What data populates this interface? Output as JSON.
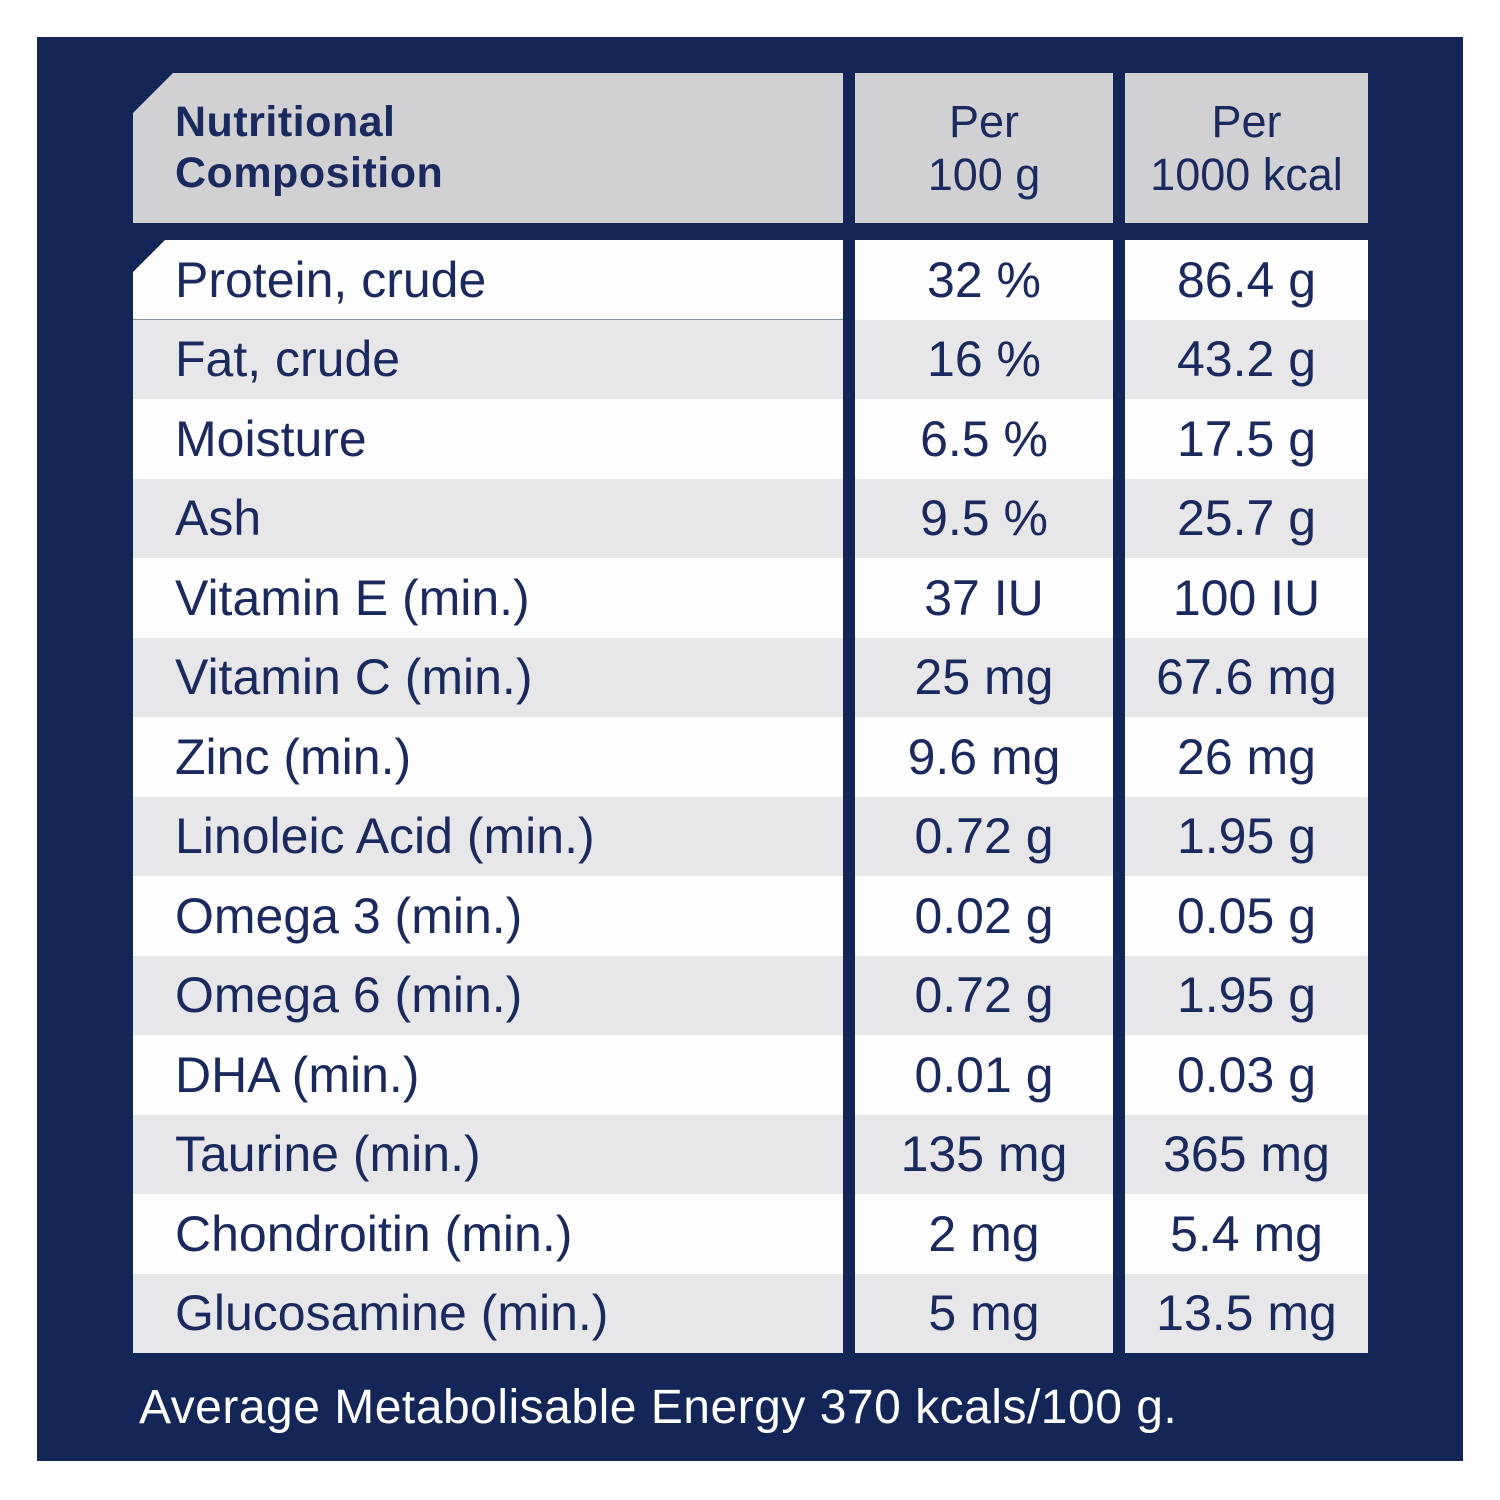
{
  "colors": {
    "navy": "#132657",
    "text_navy": "#1b2a5e",
    "header_gray": "#d1d1d3",
    "row_gray": "#e7e7ea",
    "row_white": "#fdfdfe",
    "footer_text": "#ffffff",
    "page_bg": "#ffffff"
  },
  "header": {
    "title": "Nutritional Composition",
    "title_line1": "Nutritional",
    "title_line2": "Composition",
    "col1_line1": "Per",
    "col1_line2": "100 g",
    "col2_line1": "Per",
    "col2_line2": "1000 kcal"
  },
  "rows": [
    {
      "label": "Protein, crude",
      "per_100g": "32 %",
      "per_1000kcal": "86.4 g"
    },
    {
      "label": "Fat, crude",
      "per_100g": "16 %",
      "per_1000kcal": "43.2 g"
    },
    {
      "label": "Moisture",
      "per_100g": "6.5 %",
      "per_1000kcal": "17.5 g"
    },
    {
      "label": "Ash",
      "per_100g": "9.5 %",
      "per_1000kcal": "25.7 g"
    },
    {
      "label": "Vitamin E (min.)",
      "per_100g": "37 IU",
      "per_1000kcal": "100 IU"
    },
    {
      "label": "Vitamin C (min.)",
      "per_100g": "25 mg",
      "per_1000kcal": "67.6 mg"
    },
    {
      "label": "Zinc (min.)",
      "per_100g": "9.6 mg",
      "per_1000kcal": "26 mg"
    },
    {
      "label": "Linoleic Acid (min.)",
      "per_100g": "0.72 g",
      "per_1000kcal": "1.95 g"
    },
    {
      "label": "Omega 3 (min.)",
      "per_100g": "0.02 g",
      "per_1000kcal": "0.05 g"
    },
    {
      "label": "Omega 6 (min.)",
      "per_100g": "0.72 g",
      "per_1000kcal": "1.95 g"
    },
    {
      "label": "DHA (min.)",
      "per_100g": "0.01 g",
      "per_1000kcal": "0.03 g"
    },
    {
      "label": "Taurine (min.)",
      "per_100g": "135 mg",
      "per_1000kcal": "365 mg"
    },
    {
      "label": "Chondroitin (min.)",
      "per_100g": "2 mg",
      "per_1000kcal": "5.4 mg"
    },
    {
      "label": "Glucosamine (min.)",
      "per_100g": "5 mg",
      "per_1000kcal": "13.5 mg"
    }
  ],
  "footer": "Average Metabolisable Energy 370 kcals/100 g."
}
